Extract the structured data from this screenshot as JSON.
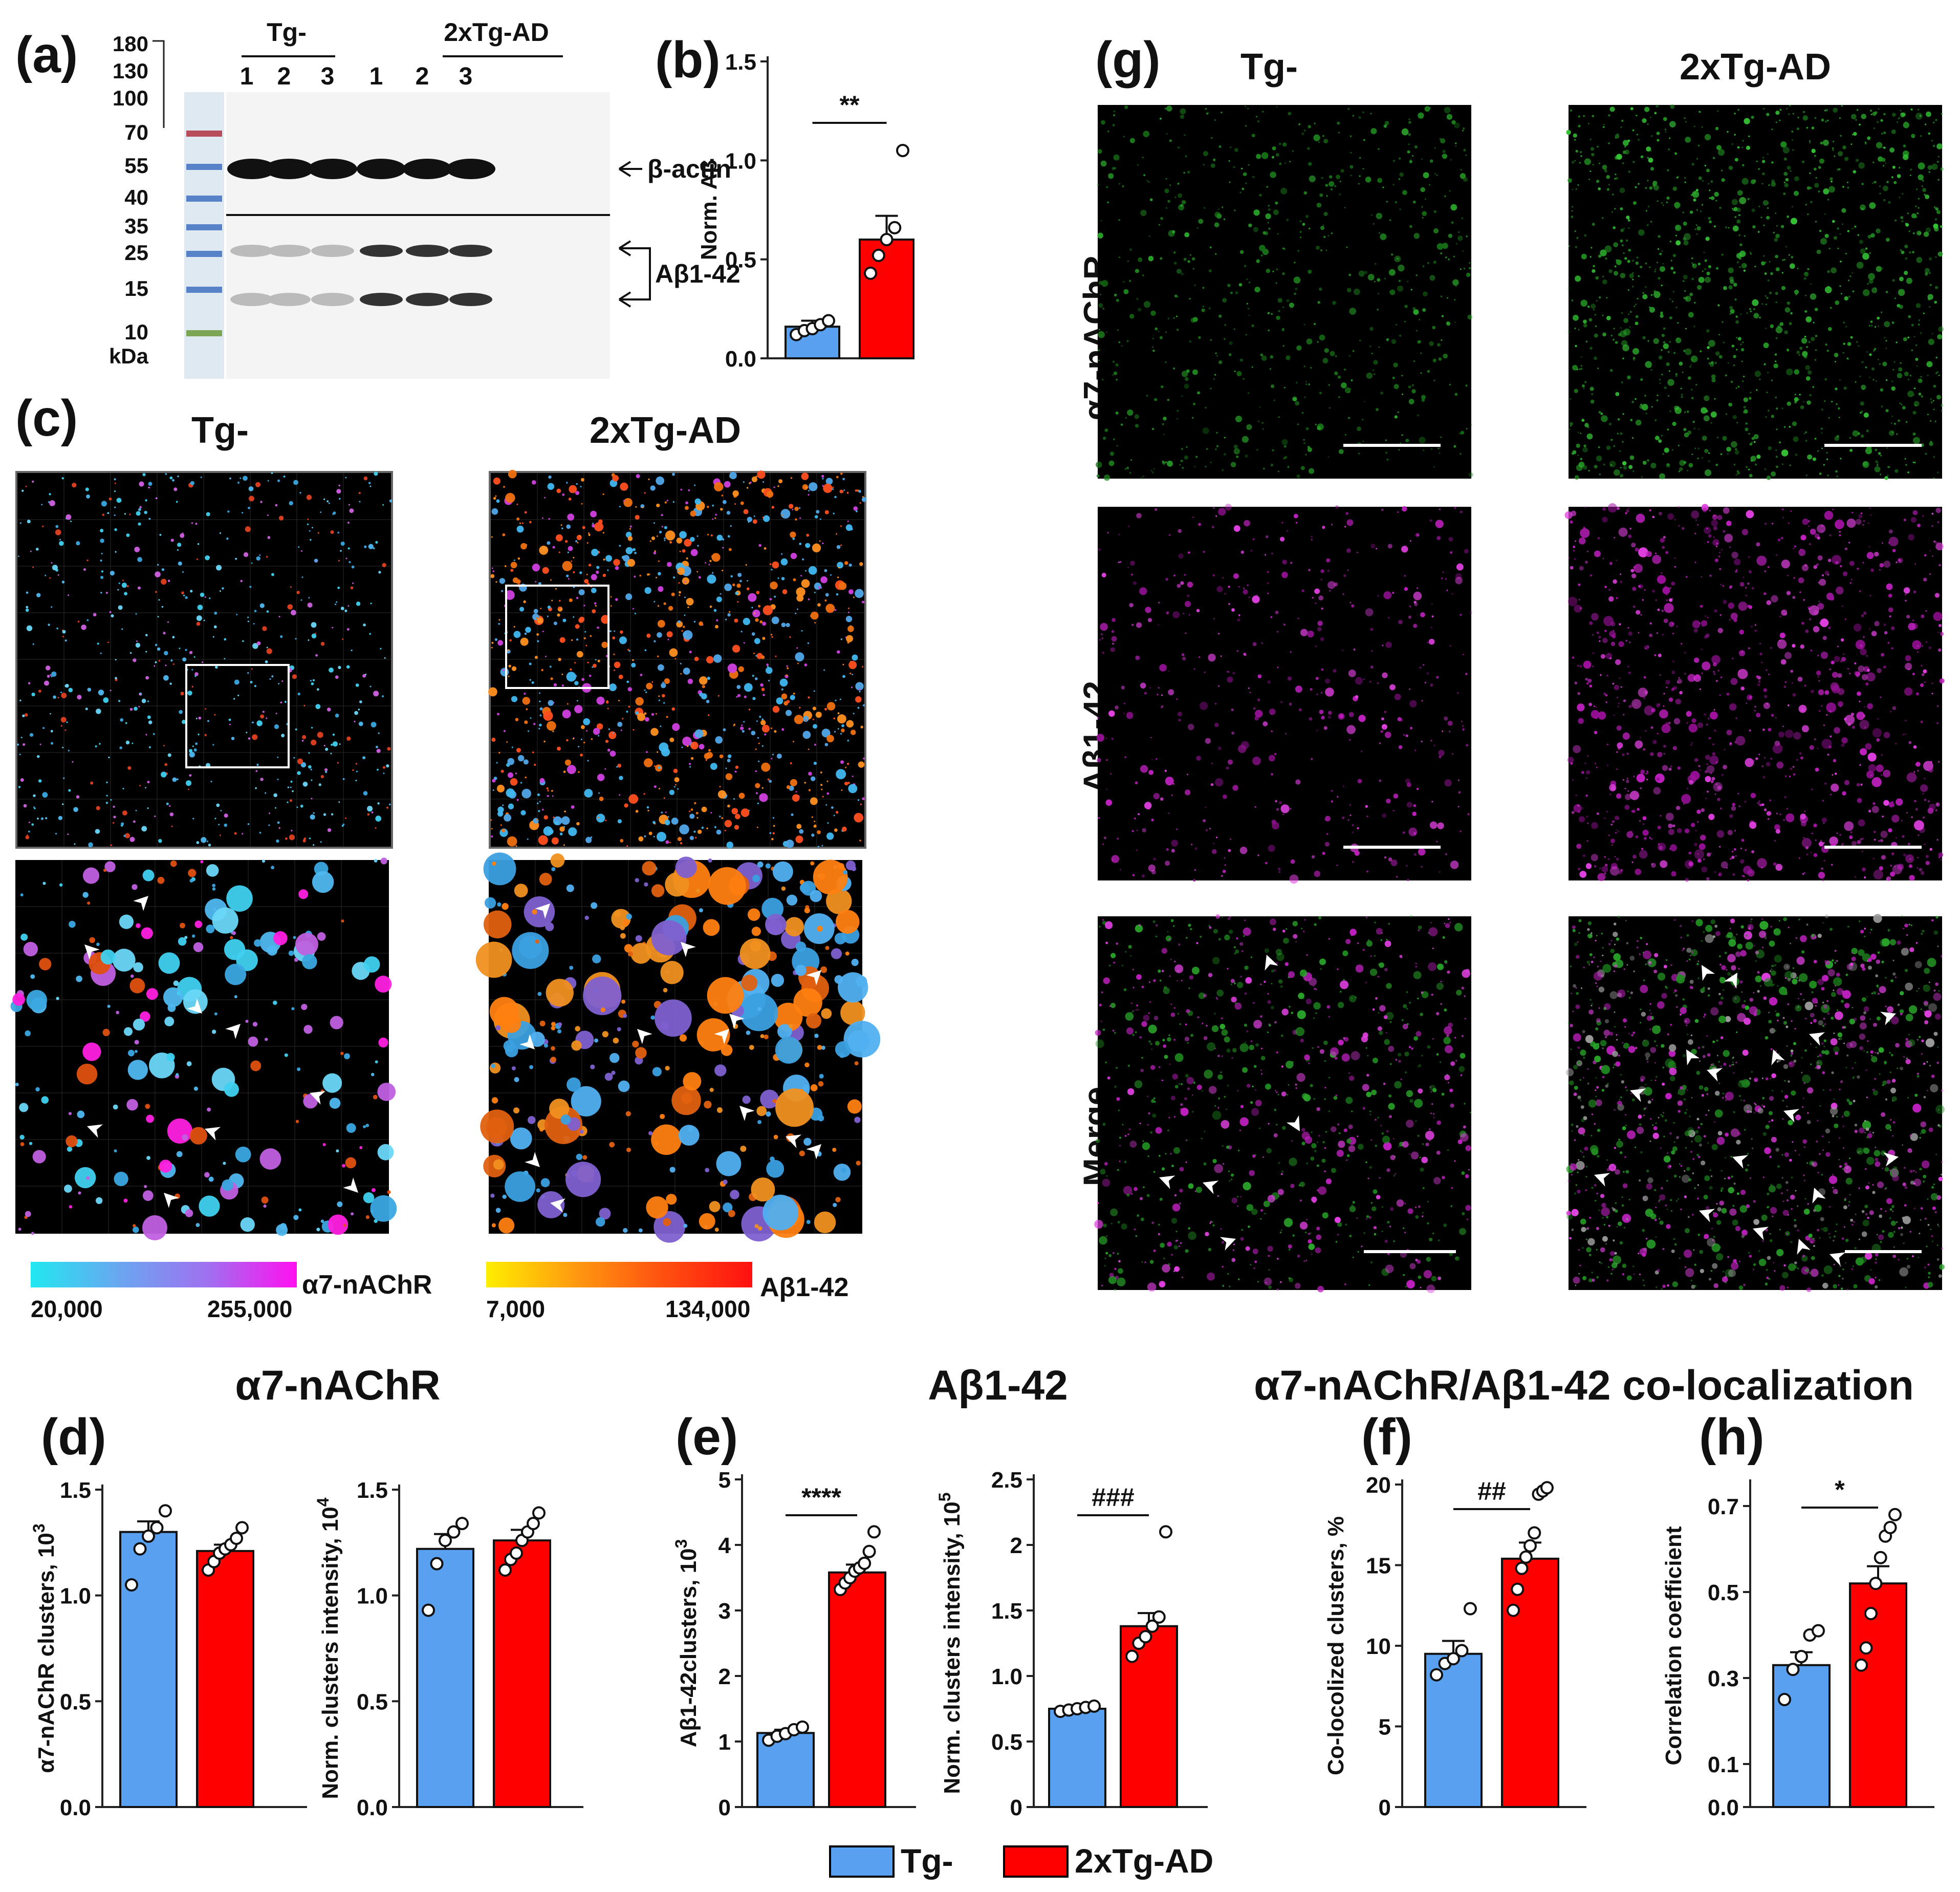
{
  "panel_labels": {
    "a": "(a)",
    "b": "(b)",
    "c": "(c)",
    "d": "(d)",
    "e": "(e)",
    "f": "(f)",
    "g": "(g)",
    "h": "(h)"
  },
  "groups": {
    "control": "Tg-",
    "ad": "2xTg-AD"
  },
  "colors": {
    "control": "#5aa0f0",
    "ad": "#ff0000",
    "green": "#1fa01f",
    "magenta": "#d01fd0"
  },
  "western": {
    "mw_markers": [
      "180",
      "130",
      "100",
      "70",
      "55",
      "40",
      "35",
      "25",
      "15",
      "10"
    ],
    "mw_unit": "kDa",
    "lanes": [
      "1",
      "2",
      "3",
      "1",
      "2",
      "3"
    ],
    "bands": {
      "actin": "β-actin",
      "abeta": "Aβ1-42"
    }
  },
  "section_titles": {
    "nachr": "α7-nAChR",
    "abeta": "Aβ1-42",
    "coloc": "α7-nAChR/Aβ1-42 co-localization"
  },
  "imaging_rows": {
    "nachr": "α7-nAChR",
    "abeta": "Aβ1-42",
    "merge": "Merge"
  },
  "colorbars": {
    "nachr": {
      "label": "α7-nAChR",
      "min": "20,000",
      "max": "255,000"
    },
    "abeta": {
      "label": "Aβ1-42",
      "min": "7,000",
      "max": "134,000"
    }
  },
  "legend": {
    "control": "Tg-",
    "ad": "2xTg-AD"
  },
  "chart_data": [
    {
      "id": "b",
      "type": "bar",
      "ylabel": "Norm. Aβ",
      "ylim": [
        0,
        1.5
      ],
      "yticks": [
        "0.0",
        "0.5",
        "1.0",
        "1.5"
      ],
      "categories": [
        "Tg-",
        "2xTg-AD"
      ],
      "values": [
        0.16,
        0.6
      ],
      "errors": [
        0.03,
        0.12
      ],
      "points": [
        [
          0.12,
          0.14,
          0.15,
          0.17,
          0.19
        ],
        [
          0.43,
          0.52,
          0.6,
          0.66,
          1.05
        ]
      ],
      "significance": "**"
    },
    {
      "id": "d1",
      "type": "bar",
      "ylabel": "α7-nAChR clusters, 10",
      "ylabel_exp": "3",
      "ylim": [
        0,
        1.5
      ],
      "yticks": [
        "0.0",
        "0.5",
        "1.0",
        "1.5"
      ],
      "categories": [
        "Tg-",
        "2xTg-AD"
      ],
      "values": [
        1.3,
        1.21
      ],
      "errors": [
        0.05,
        0.03
      ],
      "points": [
        [
          1.05,
          1.22,
          1.28,
          1.32,
          1.4
        ],
        [
          1.12,
          1.16,
          1.2,
          1.22,
          1.24,
          1.27,
          1.32
        ]
      ],
      "significance": ""
    },
    {
      "id": "d2",
      "type": "bar",
      "ylabel": "Norm. clusters intensity, 10",
      "ylabel_exp": "4",
      "ylim": [
        0,
        1.5
      ],
      "yticks": [
        "0.0",
        "0.5",
        "1.0",
        "1.5"
      ],
      "categories": [
        "Tg-",
        "2xTg-AD"
      ],
      "values": [
        1.22,
        1.26
      ],
      "errors": [
        0.07,
        0.05
      ],
      "points": [
        [
          0.93,
          1.15,
          1.26,
          1.3,
          1.34
        ],
        [
          1.12,
          1.17,
          1.2,
          1.26,
          1.3,
          1.34,
          1.39
        ]
      ],
      "significance": ""
    },
    {
      "id": "e1",
      "type": "bar",
      "ylabel": "Aβ1-42clusters, 10",
      "ylabel_exp": "3",
      "ylim": [
        0,
        5
      ],
      "yticks": [
        "0",
        "1",
        "2",
        "3",
        "4",
        "5"
      ],
      "categories": [
        "Tg-",
        "2xTg-AD"
      ],
      "values": [
        1.13,
        3.58
      ],
      "errors": [
        0.05,
        0.12
      ],
      "points": [
        [
          1.02,
          1.08,
          1.12,
          1.18,
          1.22
        ],
        [
          3.32,
          3.42,
          3.5,
          3.6,
          3.65,
          3.72,
          3.9,
          4.2
        ]
      ],
      "significance": "****"
    },
    {
      "id": "e2",
      "type": "bar",
      "ylabel": "Norm. clusters intensity, 10",
      "ylabel_exp": "5",
      "ylim": [
        0,
        2.5
      ],
      "yticks": [
        "0",
        "0.5",
        "1.0",
        "1.5",
        "2",
        "2.5"
      ],
      "categories": [
        "Tg-",
        "2xTg-AD"
      ],
      "values": [
        0.75,
        1.38
      ],
      "errors": [
        0.02,
        0.1
      ],
      "points": [
        [
          0.73,
          0.74,
          0.75,
          0.76,
          0.77
        ],
        [
          1.15,
          1.25,
          1.3,
          1.38,
          1.45,
          2.1
        ]
      ],
      "significance": "###"
    },
    {
      "id": "f",
      "type": "bar",
      "ylabel": "Co-locolized clusters, %",
      "ylim": [
        0,
        20
      ],
      "yticks": [
        "0",
        "5",
        "10",
        "15",
        "20"
      ],
      "categories": [
        "Tg-",
        "2xTg-AD"
      ],
      "values": [
        9.5,
        15.4
      ],
      "errors": [
        0.8,
        1.0
      ],
      "points": [
        [
          8.2,
          8.9,
          9.2,
          9.7,
          12.3
        ],
        [
          12.2,
          13.5,
          14.8,
          15.5,
          16.2,
          17.0,
          19.4,
          19.6,
          19.8
        ]
      ],
      "significance": "##"
    },
    {
      "id": "h",
      "type": "bar",
      "ylabel": "Correlation coefficient",
      "ylim": [
        0,
        0.75
      ],
      "yticks": [
        "0.0",
        "0.1",
        "0.3",
        "0.5",
        "0.7"
      ],
      "categories": [
        "Tg-",
        "2xTg-AD"
      ],
      "values": [
        0.33,
        0.52
      ],
      "errors": [
        0.03,
        0.04
      ],
      "points": [
        [
          0.25,
          0.32,
          0.35,
          0.4,
          0.41
        ],
        [
          0.33,
          0.37,
          0.45,
          0.52,
          0.58,
          0.63,
          0.65,
          0.68
        ]
      ],
      "significance": "*"
    }
  ]
}
